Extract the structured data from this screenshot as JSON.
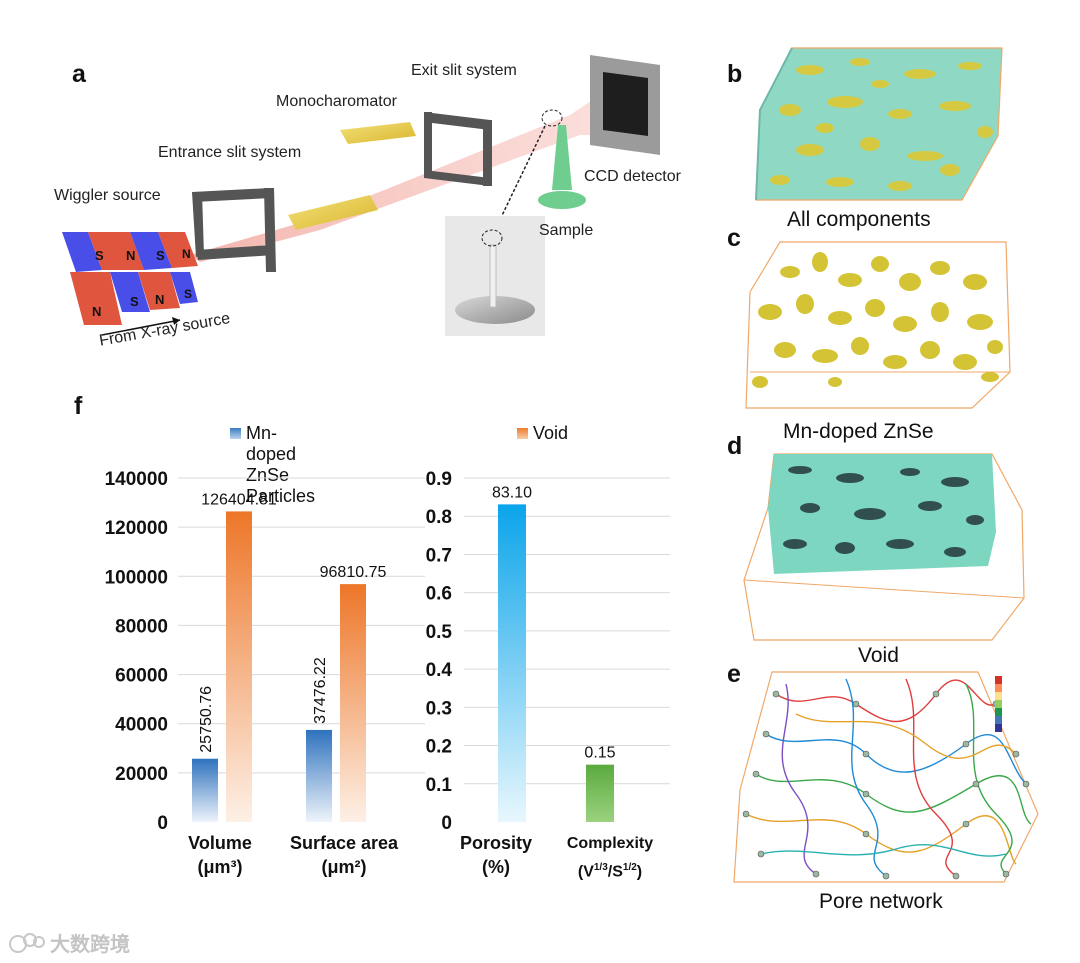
{
  "panel_letters": {
    "a": "a",
    "b": "b",
    "c": "c",
    "d": "d",
    "e": "e",
    "f": "f"
  },
  "schematic": {
    "exit_slit": "Exit slit system",
    "monochromator": "Monocharomator",
    "entrance_slit": "Entrance slit system",
    "wiggler": "Wiggler source",
    "ccd": "CCD detector",
    "sample": "Sample",
    "xray_source": "From X-ray source",
    "magnet_poles_top": [
      "S",
      "N",
      "S",
      "N"
    ],
    "magnet_poles_bottom": [
      "N",
      "S",
      "N",
      "S"
    ]
  },
  "captions": {
    "b": "All components",
    "c": "Mn-doped ZnSe",
    "d": "Void",
    "e": "Pore network"
  },
  "watermark": "大数跨境",
  "colors": {
    "particles": "#3a7cc3",
    "void": "#ee7c2e",
    "porosity": "#18a8e8",
    "complexity": "#6ab04c",
    "frame": "#f0a868",
    "void_solid": "#7dd6c0",
    "particle_solid": "#d9c93a"
  },
  "chart_data": [
    {
      "type": "bar",
      "categories": [
        "Volume (μm³)",
        "Surface area (μm²)"
      ],
      "category_lines": [
        [
          "Volume",
          "(μm³)"
        ],
        [
          "Surface area",
          "(μm²)"
        ]
      ],
      "series": [
        {
          "name": "Mn-doped ZnSe Particles",
          "values": [
            25750.76,
            37476.22
          ],
          "labels": [
            "25750.76",
            "37476.22"
          ]
        },
        {
          "name": "Void",
          "values": [
            126404.81,
            96810.75
          ],
          "labels": [
            "126404.81",
            "96810.75"
          ]
        }
      ],
      "ylim": [
        0,
        140000
      ],
      "yticks": [
        "0",
        "20000",
        "40000",
        "60000",
        "80000",
        "100000",
        "120000",
        "140000"
      ],
      "grid": true,
      "legend": "top"
    },
    {
      "type": "bar",
      "categories": [
        "Porosity (%)",
        "Complexity (V1/3/S1/2)"
      ],
      "values": [
        0.831,
        0.15
      ],
      "labels": [
        "83.10",
        "0.15"
      ],
      "ylim": [
        0,
        0.9
      ],
      "yticks": [
        "0",
        "0.1",
        "0.2",
        "0.3",
        "0.4",
        "0.5",
        "0.6",
        "0.7",
        "0.8",
        "0.9"
      ],
      "grid": true
    }
  ],
  "chart_text": {
    "porosity_lines": [
      "Porosity",
      "(%)"
    ],
    "complexity_line1": "Complexity",
    "complexity_line2_parts": [
      "(V",
      "1/3",
      "/S",
      "1/2",
      ")"
    ]
  }
}
